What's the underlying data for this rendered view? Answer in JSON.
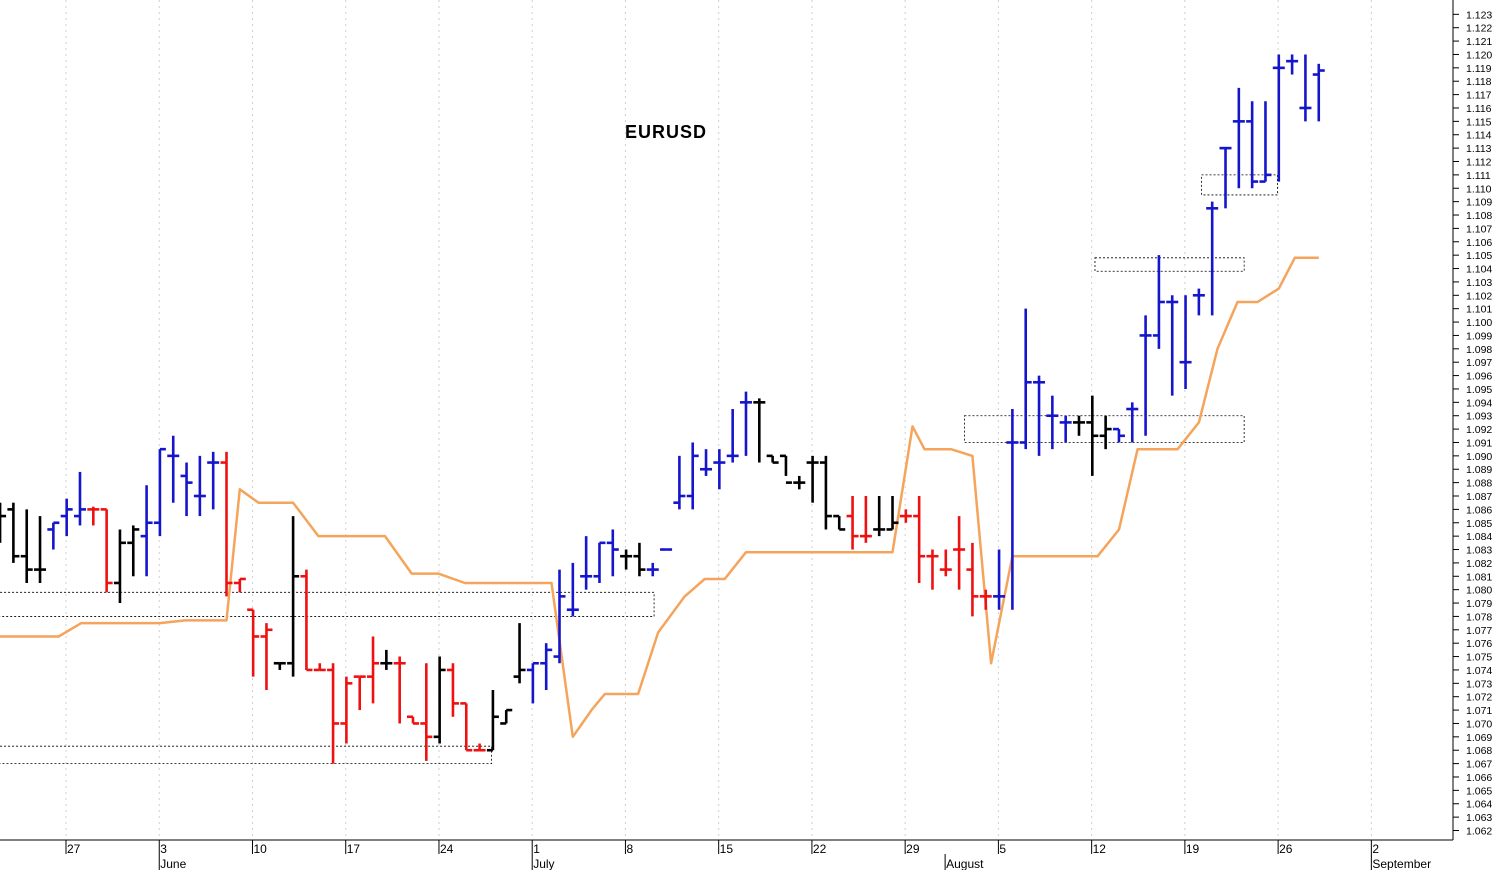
{
  "chart_data": {
    "type": "ohlc-bar",
    "title": "EURUSD",
    "ylim": [
      1.0615,
      1.1235
    ],
    "y_ticks": [
      1.062,
      1.063,
      1.064,
      1.065,
      1.066,
      1.067,
      1.068,
      1.069,
      1.07,
      1.071,
      1.072,
      1.073,
      1.074,
      1.075,
      1.076,
      1.077,
      1.078,
      1.079,
      1.08,
      1.081,
      1.082,
      1.083,
      1.084,
      1.085,
      1.086,
      1.087,
      1.088,
      1.089,
      1.09,
      1.091,
      1.092,
      1.093,
      1.094,
      1.095,
      1.096,
      1.097,
      1.098,
      1.099,
      1.1,
      1.101,
      1.102,
      1.103,
      1.104,
      1.105,
      1.106,
      1.107,
      1.108,
      1.109,
      1.11,
      1.111,
      1.112,
      1.113,
      1.114,
      1.115,
      1.116,
      1.117,
      1.118,
      1.119,
      1.12,
      1.121,
      1.122,
      1.123
    ],
    "y_tick_labels": [
      "1.062",
      "1.063",
      "1.064",
      "1.065",
      "1.066",
      "1.067",
      "1.068",
      "1.069",
      "1.070",
      "1.071",
      "1.072",
      "1.073",
      "1.074",
      "1.075",
      "1.076",
      "1.077",
      "1.078",
      "1.079",
      "1.080",
      "1.081",
      "1.082",
      "1.083",
      "1.084",
      "1.085",
      "1.086",
      "1.087",
      "1.088",
      "1.089",
      "1.090",
      "1.091",
      "1.092",
      "1.093",
      "1.094",
      "1.095",
      "1.096",
      "1.097",
      "1.098",
      "1.099",
      "1.100",
      "1.101",
      "1.102",
      "1.103",
      "1.104",
      "1.105",
      "1.106",
      "1.107",
      "1.108",
      "1.109",
      "1.110",
      "1.111",
      "1.112",
      "1.113",
      "1.114",
      "1.115",
      "1.116",
      "1.117",
      "1.118",
      "1.119",
      "1.120",
      "1.121",
      "1.122",
      "1.123"
    ],
    "x_range_days": [
      -5.7,
      97.5
    ],
    "x_tick_labels": [
      {
        "day": 0,
        "label": "27"
      },
      {
        "day": 7,
        "label": "3"
      },
      {
        "day": 14,
        "label": "10"
      },
      {
        "day": 21,
        "label": "17"
      },
      {
        "day": 28,
        "label": "24"
      },
      {
        "day": 35,
        "label": "1"
      },
      {
        "day": 42,
        "label": "8"
      },
      {
        "day": 49,
        "label": "15"
      },
      {
        "day": 56,
        "label": "22"
      },
      {
        "day": 63,
        "label": "29"
      },
      {
        "day": 70,
        "label": "5"
      },
      {
        "day": 77,
        "label": "12"
      },
      {
        "day": 84,
        "label": "19"
      },
      {
        "day": 91,
        "label": "26"
      },
      {
        "day": 98,
        "label": "2"
      }
    ],
    "month_labels": [
      {
        "day": 7,
        "label": "June"
      },
      {
        "day": 35,
        "label": "July"
      },
      {
        "day": 66,
        "label": "August"
      },
      {
        "day": 98,
        "label": "September"
      }
    ],
    "colors": {
      "up": "#1515cc",
      "down": "#ee1111",
      "neutral": "#000000",
      "line": "#f5a45c",
      "grid": "#cfcfcf",
      "box": "#000000"
    },
    "bars": [
      {
        "d": -5.4,
        "o": 1.0855,
        "h": 1.0865,
        "l": 1.0835,
        "c": 1.0855,
        "t": "n"
      },
      {
        "d": -4.4,
        "o": 1.086,
        "h": 1.0865,
        "l": 1.082,
        "c": 1.0825,
        "t": "n"
      },
      {
        "d": -3.4,
        "o": 1.0825,
        "h": 1.086,
        "l": 1.0805,
        "c": 1.0815,
        "t": "n"
      },
      {
        "d": -2.4,
        "o": 1.0815,
        "h": 1.0855,
        "l": 1.0805,
        "c": 1.0815,
        "t": "n"
      },
      {
        "d": -1.4,
        "o": 1.0845,
        "h": 1.085,
        "l": 1.083,
        "c": 1.085,
        "t": "u"
      },
      {
        "d": -0.4,
        "o": 1.0855,
        "h": 1.0868,
        "l": 1.084,
        "c": 1.086,
        "t": "u"
      },
      {
        "d": 0.6,
        "o": 1.0855,
        "h": 1.0888,
        "l": 1.0848,
        "c": 1.086,
        "t": "u"
      },
      {
        "d": 1.6,
        "o": 1.086,
        "h": 1.0862,
        "l": 1.0848,
        "c": 1.086,
        "t": "d"
      },
      {
        "d": 2.6,
        "o": 1.086,
        "h": 1.086,
        "l": 1.0798,
        "c": 1.0805,
        "t": "d"
      },
      {
        "d": 3.6,
        "o": 1.0805,
        "h": 1.0845,
        "l": 1.079,
        "c": 1.0835,
        "t": "n"
      },
      {
        "d": 4.6,
        "o": 1.0835,
        "h": 1.0848,
        "l": 1.081,
        "c": 1.0845,
        "t": "n"
      },
      {
        "d": 5.6,
        "o": 1.084,
        "h": 1.0878,
        "l": 1.081,
        "c": 1.085,
        "t": "u"
      },
      {
        "d": 6.6,
        "o": 1.085,
        "h": 1.0905,
        "l": 1.084,
        "c": 1.0905,
        "t": "u"
      },
      {
        "d": 7.6,
        "o": 1.09,
        "h": 1.0915,
        "l": 1.0865,
        "c": 1.09,
        "t": "u"
      },
      {
        "d": 8.6,
        "o": 1.0885,
        "h": 1.0895,
        "l": 1.0855,
        "c": 1.088,
        "t": "u"
      },
      {
        "d": 9.6,
        "o": 1.087,
        "h": 1.09,
        "l": 1.0855,
        "c": 1.087,
        "t": "u"
      },
      {
        "d": 10.6,
        "o": 1.0895,
        "h": 1.0903,
        "l": 1.086,
        "c": 1.0895,
        "t": "u"
      },
      {
        "d": 11.6,
        "o": 1.0895,
        "h": 1.0903,
        "l": 1.0795,
        "c": 1.0805,
        "t": "d"
      },
      {
        "d": 12.6,
        "o": 1.0805,
        "h": 1.0808,
        "l": 1.0798,
        "c": 1.0808,
        "t": "d"
      },
      {
        "d": 13.6,
        "o": 1.0785,
        "h": 1.0785,
        "l": 1.0735,
        "c": 1.0765,
        "t": "d"
      },
      {
        "d": 14.6,
        "o": 1.0765,
        "h": 1.0775,
        "l": 1.0725,
        "c": 1.077,
        "t": "d"
      },
      {
        "d": 15.6,
        "o": 1.0745,
        "h": 1.0745,
        "l": 1.074,
        "c": 1.0745,
        "t": "n"
      },
      {
        "d": 16.6,
        "o": 1.0745,
        "h": 1.0855,
        "l": 1.0735,
        "c": 1.081,
        "t": "n"
      },
      {
        "d": 17.6,
        "o": 1.081,
        "h": 1.0815,
        "l": 1.074,
        "c": 1.074,
        "t": "d"
      },
      {
        "d": 18.6,
        "o": 1.074,
        "h": 1.0745,
        "l": 1.074,
        "c": 1.074,
        "t": "d"
      },
      {
        "d": 19.6,
        "o": 1.074,
        "h": 1.0745,
        "l": 1.067,
        "c": 1.07,
        "t": "d"
      },
      {
        "d": 20.6,
        "o": 1.07,
        "h": 1.0735,
        "l": 1.0685,
        "c": 1.073,
        "t": "d"
      },
      {
        "d": 21.6,
        "o": 1.0735,
        "h": 1.0735,
        "l": 1.071,
        "c": 1.0735,
        "t": "d"
      },
      {
        "d": 22.6,
        "o": 1.0735,
        "h": 1.0765,
        "l": 1.0715,
        "c": 1.0745,
        "t": "d"
      },
      {
        "d": 23.6,
        "o": 1.0745,
        "h": 1.0755,
        "l": 1.074,
        "c": 1.0745,
        "t": "n"
      },
      {
        "d": 24.6,
        "o": 1.0745,
        "h": 1.075,
        "l": 1.07,
        "c": 1.0745,
        "t": "d"
      },
      {
        "d": 25.6,
        "o": 1.0705,
        "h": 1.0705,
        "l": 1.07,
        "c": 1.07,
        "t": "d"
      },
      {
        "d": 26.6,
        "o": 1.07,
        "h": 1.0745,
        "l": 1.0672,
        "c": 1.069,
        "t": "d"
      },
      {
        "d": 27.6,
        "o": 1.069,
        "h": 1.075,
        "l": 1.0685,
        "c": 1.074,
        "t": "n"
      },
      {
        "d": 28.6,
        "o": 1.074,
        "h": 1.0745,
        "l": 1.0705,
        "c": 1.0715,
        "t": "d"
      },
      {
        "d": 29.6,
        "o": 1.0715,
        "h": 1.0715,
        "l": 1.068,
        "c": 1.068,
        "t": "d"
      },
      {
        "d": 30.6,
        "o": 1.068,
        "h": 1.0685,
        "l": 1.068,
        "c": 1.068,
        "t": "d"
      },
      {
        "d": 31.6,
        "o": 1.068,
        "h": 1.0725,
        "l": 1.068,
        "c": 1.0705,
        "t": "n"
      },
      {
        "d": 32.6,
        "o": 1.07,
        "h": 1.071,
        "l": 1.07,
        "c": 1.071,
        "t": "n"
      },
      {
        "d": 33.6,
        "o": 1.0735,
        "h": 1.0775,
        "l": 1.073,
        "c": 1.074,
        "t": "n"
      },
      {
        "d": 34.6,
        "o": 1.074,
        "h": 1.0745,
        "l": 1.0715,
        "c": 1.0745,
        "t": "u"
      },
      {
        "d": 35.6,
        "o": 1.0745,
        "h": 1.076,
        "l": 1.0725,
        "c": 1.0755,
        "t": "u"
      },
      {
        "d": 36.6,
        "o": 1.075,
        "h": 1.0815,
        "l": 1.0745,
        "c": 1.0795,
        "t": "u"
      },
      {
        "d": 37.6,
        "o": 1.0785,
        "h": 1.082,
        "l": 1.078,
        "c": 1.0785,
        "t": "u"
      },
      {
        "d": 38.6,
        "o": 1.081,
        "h": 1.084,
        "l": 1.08,
        "c": 1.081,
        "t": "u"
      },
      {
        "d": 39.6,
        "o": 1.081,
        "h": 1.0835,
        "l": 1.0805,
        "c": 1.0835,
        "t": "u"
      },
      {
        "d": 40.6,
        "o": 1.0835,
        "h": 1.0845,
        "l": 1.081,
        "c": 1.083,
        "t": "u"
      },
      {
        "d": 41.6,
        "o": 1.0825,
        "h": 1.083,
        "l": 1.0815,
        "c": 1.0825,
        "t": "n"
      },
      {
        "d": 42.6,
        "o": 1.0825,
        "h": 1.0835,
        "l": 1.081,
        "c": 1.0815,
        "t": "n"
      },
      {
        "d": 43.6,
        "o": 1.0815,
        "h": 1.082,
        "l": 1.081,
        "c": 1.0815,
        "t": "u"
      },
      {
        "d": 44.6,
        "o": 1.083,
        "h": 1.083,
        "l": 1.083,
        "c": 1.083,
        "t": "u"
      },
      {
        "d": 45.6,
        "o": 1.0865,
        "h": 1.09,
        "l": 1.086,
        "c": 1.087,
        "t": "u"
      },
      {
        "d": 46.6,
        "o": 1.087,
        "h": 1.091,
        "l": 1.086,
        "c": 1.09,
        "t": "u"
      },
      {
        "d": 47.6,
        "o": 1.089,
        "h": 1.0905,
        "l": 1.0885,
        "c": 1.089,
        "t": "u"
      },
      {
        "d": 48.6,
        "o": 1.0895,
        "h": 1.0905,
        "l": 1.0875,
        "c": 1.0895,
        "t": "u"
      },
      {
        "d": 49.6,
        "o": 1.09,
        "h": 1.0935,
        "l": 1.0895,
        "c": 1.09,
        "t": "u"
      },
      {
        "d": 50.6,
        "o": 1.094,
        "h": 1.0948,
        "l": 1.09,
        "c": 1.094,
        "t": "u"
      },
      {
        "d": 51.6,
        "o": 1.094,
        "h": 1.0943,
        "l": 1.0895,
        "c": 1.094,
        "t": "n"
      },
      {
        "d": 52.6,
        "o": 1.09,
        "h": 1.09,
        "l": 1.0895,
        "c": 1.0895,
        "t": "n"
      },
      {
        "d": 53.6,
        "o": 1.09,
        "h": 1.09,
        "l": 1.0885,
        "c": 1.088,
        "t": "n"
      },
      {
        "d": 54.6,
        "o": 1.088,
        "h": 1.0885,
        "l": 1.0875,
        "c": 1.088,
        "t": "n"
      },
      {
        "d": 55.6,
        "o": 1.0895,
        "h": 1.09,
        "l": 1.0865,
        "c": 1.0895,
        "t": "n"
      },
      {
        "d": 56.6,
        "o": 1.0895,
        "h": 1.09,
        "l": 1.0845,
        "c": 1.0855,
        "t": "n"
      },
      {
        "d": 57.6,
        "o": 1.0855,
        "h": 1.0855,
        "l": 1.0845,
        "c": 1.0845,
        "t": "n"
      },
      {
        "d": 58.6,
        "o": 1.0855,
        "h": 1.087,
        "l": 1.083,
        "c": 1.084,
        "t": "d"
      },
      {
        "d": 59.6,
        "o": 1.084,
        "h": 1.087,
        "l": 1.0835,
        "c": 1.084,
        "t": "d"
      },
      {
        "d": 60.6,
        "o": 1.0845,
        "h": 1.087,
        "l": 1.084,
        "c": 1.0845,
        "t": "n"
      },
      {
        "d": 61.6,
        "o": 1.0845,
        "h": 1.087,
        "l": 1.0845,
        "c": 1.085,
        "t": "n"
      },
      {
        "d": 62.6,
        "o": 1.0855,
        "h": 1.086,
        "l": 1.085,
        "c": 1.0855,
        "t": "d"
      },
      {
        "d": 63.6,
        "o": 1.0855,
        "h": 1.087,
        "l": 1.0805,
        "c": 1.0825,
        "t": "d"
      },
      {
        "d": 64.6,
        "o": 1.0825,
        "h": 1.083,
        "l": 1.08,
        "c": 1.0825,
        "t": "d"
      },
      {
        "d": 65.6,
        "o": 1.0815,
        "h": 1.083,
        "l": 1.081,
        "c": 1.0815,
        "t": "d"
      },
      {
        "d": 66.6,
        "o": 1.083,
        "h": 1.0855,
        "l": 1.08,
        "c": 1.083,
        "t": "d"
      },
      {
        "d": 67.6,
        "o": 1.0815,
        "h": 1.0835,
        "l": 1.078,
        "c": 1.0795,
        "t": "d"
      },
      {
        "d": 68.6,
        "o": 1.0795,
        "h": 1.08,
        "l": 1.0785,
        "c": 1.0795,
        "t": "d"
      },
      {
        "d": 69.6,
        "o": 1.0795,
        "h": 1.083,
        "l": 1.0785,
        "c": 1.0795,
        "t": "u"
      },
      {
        "d": 70.6,
        "o": 1.091,
        "h": 1.0935,
        "l": 1.0785,
        "c": 1.091,
        "t": "u"
      },
      {
        "d": 71.6,
        "o": 1.091,
        "h": 1.101,
        "l": 1.0905,
        "c": 1.0955,
        "t": "u"
      },
      {
        "d": 72.6,
        "o": 1.0955,
        "h": 1.096,
        "l": 1.09,
        "c": 1.0955,
        "t": "u"
      },
      {
        "d": 73.6,
        "o": 1.093,
        "h": 1.0945,
        "l": 1.0905,
        "c": 1.093,
        "t": "u"
      },
      {
        "d": 74.6,
        "o": 1.0925,
        "h": 1.093,
        "l": 1.091,
        "c": 1.0925,
        "t": "u"
      },
      {
        "d": 75.6,
        "o": 1.0925,
        "h": 1.093,
        "l": 1.0915,
        "c": 1.0925,
        "t": "n"
      },
      {
        "d": 76.6,
        "o": 1.0925,
        "h": 1.0945,
        "l": 1.0885,
        "c": 1.0915,
        "t": "n"
      },
      {
        "d": 77.6,
        "o": 1.0915,
        "h": 1.093,
        "l": 1.0905,
        "c": 1.092,
        "t": "n"
      },
      {
        "d": 78.6,
        "o": 1.092,
        "h": 1.092,
        "l": 1.091,
        "c": 1.0915,
        "t": "u"
      },
      {
        "d": 79.6,
        "o": 1.0935,
        "h": 1.094,
        "l": 1.091,
        "c": 1.0935,
        "t": "u"
      },
      {
        "d": 80.6,
        "o": 1.099,
        "h": 1.1005,
        "l": 1.0915,
        "c": 1.099,
        "t": "u"
      },
      {
        "d": 81.6,
        "o": 1.099,
        "h": 1.105,
        "l": 1.098,
        "c": 1.1015,
        "t": "u"
      },
      {
        "d": 82.6,
        "o": 1.1015,
        "h": 1.102,
        "l": 1.0945,
        "c": 1.1015,
        "t": "u"
      },
      {
        "d": 83.6,
        "o": 1.097,
        "h": 1.102,
        "l": 1.095,
        "c": 1.097,
        "t": "u"
      },
      {
        "d": 84.6,
        "o": 1.102,
        "h": 1.1025,
        "l": 1.1005,
        "c": 1.102,
        "t": "u"
      },
      {
        "d": 85.6,
        "o": 1.1085,
        "h": 1.109,
        "l": 1.1005,
        "c": 1.1085,
        "t": "u"
      },
      {
        "d": 86.6,
        "o": 1.113,
        "h": 1.113,
        "l": 1.1085,
        "c": 1.113,
        "t": "u"
      },
      {
        "d": 87.6,
        "o": 1.115,
        "h": 1.1175,
        "l": 1.11,
        "c": 1.115,
        "t": "u"
      },
      {
        "d": 88.6,
        "o": 1.115,
        "h": 1.1165,
        "l": 1.11,
        "c": 1.1105,
        "t": "u"
      },
      {
        "d": 89.6,
        "o": 1.1105,
        "h": 1.1165,
        "l": 1.1105,
        "c": 1.111,
        "t": "u"
      },
      {
        "d": 90.6,
        "o": 1.119,
        "h": 1.12,
        "l": 1.1105,
        "c": 1.119,
        "t": "u"
      },
      {
        "d": 91.6,
        "o": 1.1195,
        "h": 1.12,
        "l": 1.1185,
        "c": 1.1195,
        "t": "u"
      },
      {
        "d": 92.6,
        "o": 1.116,
        "h": 1.12,
        "l": 1.115,
        "c": 1.116,
        "t": "u"
      },
      {
        "d": 93.6,
        "o": 1.1185,
        "h": 1.1193,
        "l": 1.115,
        "c": 1.1188,
        "t": "u"
      }
    ],
    "line_series": [
      {
        "d": -5.7,
        "v": 1.0765
      },
      {
        "d": -1.0,
        "v": 1.0765
      },
      {
        "d": 0.7,
        "v": 1.0775
      },
      {
        "d": 4.0,
        "v": 1.0775
      },
      {
        "d": 6.6,
        "v": 1.0775
      },
      {
        "d": 8.5,
        "v": 1.0777
      },
      {
        "d": 11.6,
        "v": 1.0777
      },
      {
        "d": 12.6,
        "v": 1.0875
      },
      {
        "d": 14.0,
        "v": 1.0865
      },
      {
        "d": 16.6,
        "v": 1.0865
      },
      {
        "d": 18.5,
        "v": 1.084
      },
      {
        "d": 23.5,
        "v": 1.084
      },
      {
        "d": 25.5,
        "v": 1.0812
      },
      {
        "d": 27.5,
        "v": 1.0812
      },
      {
        "d": 29.5,
        "v": 1.0805
      },
      {
        "d": 36.0,
        "v": 1.0805
      },
      {
        "d": 37.6,
        "v": 1.069
      },
      {
        "d": 39.0,
        "v": 1.071
      },
      {
        "d": 40.0,
        "v": 1.0722
      },
      {
        "d": 42.5,
        "v": 1.0722
      },
      {
        "d": 44.0,
        "v": 1.0768
      },
      {
        "d": 46.0,
        "v": 1.0795
      },
      {
        "d": 47.5,
        "v": 1.0808
      },
      {
        "d": 49.0,
        "v": 1.0808
      },
      {
        "d": 50.6,
        "v": 1.0828
      },
      {
        "d": 58.0,
        "v": 1.0828
      },
      {
        "d": 61.6,
        "v": 1.0828
      },
      {
        "d": 63.1,
        "v": 1.0922
      },
      {
        "d": 64.0,
        "v": 1.0905
      },
      {
        "d": 66.0,
        "v": 1.0905
      },
      {
        "d": 67.6,
        "v": 1.09
      },
      {
        "d": 69.0,
        "v": 1.0745
      },
      {
        "d": 70.6,
        "v": 1.0825
      },
      {
        "d": 77.0,
        "v": 1.0825
      },
      {
        "d": 78.6,
        "v": 1.0845
      },
      {
        "d": 80.0,
        "v": 1.0905
      },
      {
        "d": 83.0,
        "v": 1.0905
      },
      {
        "d": 84.6,
        "v": 1.0925
      },
      {
        "d": 86.0,
        "v": 1.098
      },
      {
        "d": 87.5,
        "v": 1.1015
      },
      {
        "d": 89.0,
        "v": 1.1015
      },
      {
        "d": 90.6,
        "v": 1.1025
      },
      {
        "d": 91.8,
        "v": 1.1048
      },
      {
        "d": 93.6,
        "v": 1.1048
      }
    ],
    "boxes": [
      {
        "d0": -5.7,
        "d1": 43.7,
        "v0": 1.078,
        "v1": 1.0798
      },
      {
        "d0": -5.7,
        "d1": 31.5,
        "v0": 1.067,
        "v1": 1.0683
      },
      {
        "d0": 67.0,
        "d1": 88.0,
        "v0": 1.091,
        "v1": 1.093
      },
      {
        "d0": 76.8,
        "d1": 88.0,
        "v0": 1.1038,
        "v1": 1.1048
      },
      {
        "d0": 84.8,
        "d1": 90.5,
        "v0": 1.1095,
        "v1": 1.111
      }
    ]
  }
}
